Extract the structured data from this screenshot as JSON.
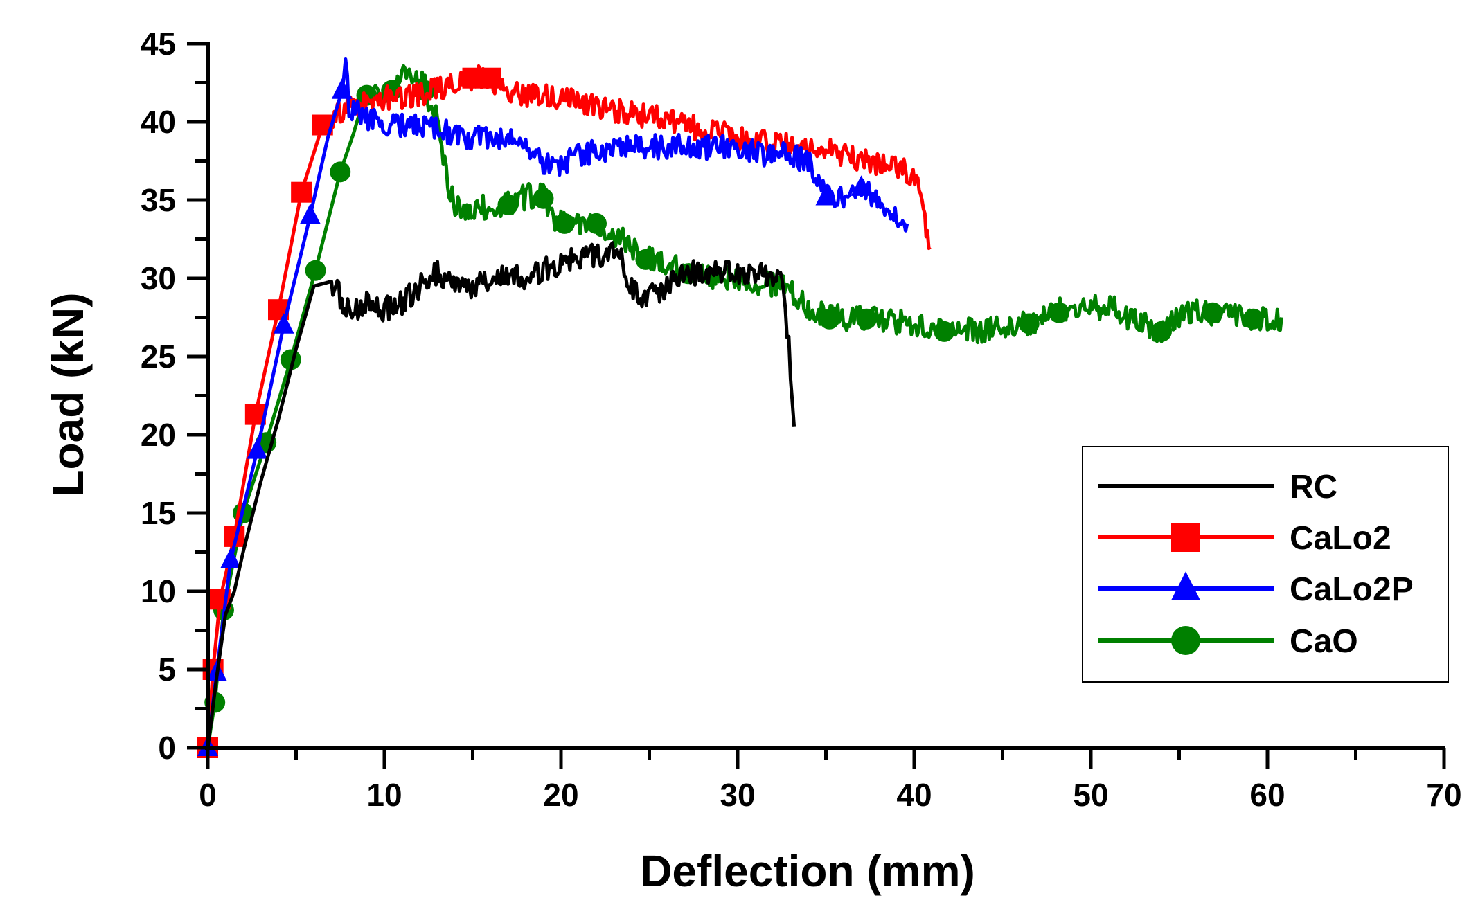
{
  "chart_data": {
    "type": "line",
    "title": "",
    "xlabel": "Deflection (mm)",
    "ylabel": "Load (kN)",
    "xlim": [
      0,
      70
    ],
    "ylim": [
      0,
      45
    ],
    "xticks": [
      0,
      10,
      20,
      30,
      40,
      50,
      60,
      70
    ],
    "yticks": [
      0,
      5,
      10,
      15,
      20,
      25,
      30,
      35,
      40,
      45
    ],
    "grid": false,
    "legend_position": "right",
    "series": [
      {
        "name": "RC",
        "color": "#000000",
        "marker": "none",
        "points": [
          [
            0,
            0
          ],
          [
            0.5,
            4.5
          ],
          [
            1,
            8.5
          ],
          [
            1.5,
            10
          ],
          [
            2,
            12.5
          ],
          [
            3,
            17
          ],
          [
            4,
            21
          ],
          [
            5,
            25.5
          ],
          [
            6,
            29.5
          ],
          [
            7,
            29.8
          ],
          [
            8,
            27.8
          ],
          [
            9,
            28.5
          ],
          [
            10,
            28
          ],
          [
            11,
            28.5
          ],
          [
            12,
            29.5
          ],
          [
            13,
            30.3
          ],
          [
            14,
            29.8
          ],
          [
            15,
            29.5
          ],
          [
            16,
            30
          ],
          [
            17,
            30.2
          ],
          [
            18,
            30
          ],
          [
            19,
            30.5
          ],
          [
            20,
            31
          ],
          [
            21,
            31.2
          ],
          [
            22,
            31.5
          ],
          [
            23,
            31.6
          ],
          [
            23.5,
            31.2
          ],
          [
            24,
            29.2
          ],
          [
            25,
            28.8
          ],
          [
            26,
            29.5
          ],
          [
            27,
            30.2
          ],
          [
            28,
            30.5
          ],
          [
            29,
            30.3
          ],
          [
            30,
            30.5
          ],
          [
            31,
            30.4
          ],
          [
            32,
            30
          ],
          [
            32.6,
            29.5
          ],
          [
            32.8,
            27
          ],
          [
            33,
            24
          ],
          [
            33.2,
            20.5
          ]
        ],
        "marker_points": []
      },
      {
        "name": "CaLo2",
        "color": "#ff0000",
        "marker": "square",
        "points": [
          [
            0,
            0
          ],
          [
            0.3,
            5
          ],
          [
            0.7,
            9.5
          ],
          [
            1.5,
            13.5
          ],
          [
            2.7,
            21.3
          ],
          [
            4,
            28
          ],
          [
            5.3,
            35.5
          ],
          [
            6.5,
            39.8
          ],
          [
            8,
            41
          ],
          [
            10,
            41.5
          ],
          [
            12,
            41.8
          ],
          [
            14,
            42.3
          ],
          [
            15,
            42.8
          ],
          [
            16,
            42.8
          ],
          [
            17,
            42
          ],
          [
            18,
            41.8
          ],
          [
            20,
            41.5
          ],
          [
            22,
            41
          ],
          [
            24,
            40.5
          ],
          [
            26,
            40.2
          ],
          [
            28,
            39.5
          ],
          [
            30,
            39
          ],
          [
            32,
            38.6
          ],
          [
            34,
            38.3
          ],
          [
            36,
            38
          ],
          [
            38,
            37.2
          ],
          [
            39.5,
            37
          ],
          [
            40.2,
            36
          ],
          [
            40.6,
            33.5
          ],
          [
            40.9,
            32
          ]
        ],
        "marker_points": [
          [
            0,
            0
          ],
          [
            0.3,
            5
          ],
          [
            0.7,
            9.5
          ],
          [
            1.5,
            13.5
          ],
          [
            2.7,
            21.3
          ],
          [
            4,
            28
          ],
          [
            5.3,
            35.5
          ],
          [
            6.5,
            39.8
          ],
          [
            15,
            42.8
          ],
          [
            16,
            42.8
          ]
        ]
      },
      {
        "name": "CaLo2P",
        "color": "#0000ff",
        "marker": "triangle",
        "points": [
          [
            0,
            0
          ],
          [
            0.5,
            4.8
          ],
          [
            1.3,
            12
          ],
          [
            2.8,
            19
          ],
          [
            4.3,
            27
          ],
          [
            5.8,
            34
          ],
          [
            6.8,
            39
          ],
          [
            7.6,
            42
          ],
          [
            7.8,
            43.5
          ],
          [
            8,
            41
          ],
          [
            9,
            40.2
          ],
          [
            10,
            39.8
          ],
          [
            11,
            39.8
          ],
          [
            12,
            39.6
          ],
          [
            13,
            39.5
          ],
          [
            14,
            39.2
          ],
          [
            15,
            39
          ],
          [
            16,
            38.8
          ],
          [
            17,
            39.2
          ],
          [
            18,
            38.5
          ],
          [
            19,
            37.2
          ],
          [
            20,
            37.3
          ],
          [
            21,
            38
          ],
          [
            22,
            38
          ],
          [
            23,
            38.2
          ],
          [
            24,
            38.3
          ],
          [
            25,
            38.5
          ],
          [
            26,
            38.4
          ],
          [
            27,
            38.5
          ],
          [
            28,
            38.3
          ],
          [
            29,
            38.4
          ],
          [
            30,
            38.2
          ],
          [
            31,
            38
          ],
          [
            32,
            38
          ],
          [
            33,
            37.8
          ],
          [
            34,
            37.5
          ],
          [
            35,
            35.2
          ],
          [
            36,
            35.3
          ],
          [
            37,
            35.8
          ],
          [
            38,
            35
          ],
          [
            39,
            34.2
          ],
          [
            39.6,
            33.5
          ]
        ],
        "marker_points": [
          [
            0,
            0
          ],
          [
            0.5,
            4.8
          ],
          [
            1.3,
            12
          ],
          [
            2.8,
            19
          ],
          [
            4.3,
            27
          ],
          [
            5.8,
            34
          ],
          [
            7.6,
            42
          ],
          [
            35,
            35.2
          ],
          [
            37,
            35.8
          ]
        ]
      },
      {
        "name": "CaO",
        "color": "#008000",
        "marker": "circle",
        "points": [
          [
            0,
            0
          ],
          [
            0.4,
            2.9
          ],
          [
            0.9,
            8.8
          ],
          [
            2,
            15
          ],
          [
            3.3,
            19.5
          ],
          [
            4.7,
            24.8
          ],
          [
            6.1,
            30.5
          ],
          [
            7.5,
            36.8
          ],
          [
            9,
            41.7
          ],
          [
            10.4,
            42
          ],
          [
            11,
            42.8
          ],
          [
            12.3,
            42.5
          ],
          [
            12.5,
            41.5
          ],
          [
            13,
            40
          ],
          [
            13.5,
            36.5
          ],
          [
            14,
            34.5
          ],
          [
            15,
            34.5
          ],
          [
            16,
            34.5
          ],
          [
            17,
            34.8
          ],
          [
            18,
            35.2
          ],
          [
            19,
            35.5
          ],
          [
            19.4,
            34
          ],
          [
            20,
            33.5
          ],
          [
            21,
            33.5
          ],
          [
            22,
            33.5
          ],
          [
            23,
            32.8
          ],
          [
            24,
            32
          ],
          [
            25,
            31.3
          ],
          [
            26,
            31
          ],
          [
            27,
            30.5
          ],
          [
            28,
            30.2
          ],
          [
            29,
            30
          ],
          [
            30,
            30
          ],
          [
            31,
            29.8
          ],
          [
            32,
            29.5
          ],
          [
            33,
            29.3
          ],
          [
            34,
            28
          ],
          [
            35,
            27.7
          ],
          [
            36,
            27.4
          ],
          [
            37,
            27.5
          ],
          [
            38,
            27.3
          ],
          [
            39,
            27.2
          ],
          [
            40,
            27
          ],
          [
            41,
            26.7
          ],
          [
            42,
            26.5
          ],
          [
            43,
            26.8
          ],
          [
            44,
            26.6
          ],
          [
            45,
            26.8
          ],
          [
            46,
            27
          ],
          [
            47,
            27.3
          ],
          [
            48,
            28
          ],
          [
            49,
            27.9
          ],
          [
            50,
            28.1
          ],
          [
            51,
            28.2
          ],
          [
            52,
            27.6
          ],
          [
            54,
            26.6
          ],
          [
            55,
            27.5
          ],
          [
            56,
            27.8
          ],
          [
            57,
            27.7
          ],
          [
            58,
            27.6
          ],
          [
            59,
            27.5
          ],
          [
            60,
            27.4
          ],
          [
            60.8,
            27.5
          ]
        ],
        "marker_points": [
          [
            0,
            0
          ],
          [
            0.4,
            2.9
          ],
          [
            0.9,
            8.8
          ],
          [
            2,
            15
          ],
          [
            3.3,
            19.5
          ],
          [
            4.7,
            24.8
          ],
          [
            6.1,
            30.5
          ],
          [
            7.5,
            36.8
          ],
          [
            9,
            41.7
          ],
          [
            10.4,
            42
          ],
          [
            12.3,
            42
          ],
          [
            17,
            34.7
          ],
          [
            19,
            35.1
          ],
          [
            20.2,
            33.5
          ],
          [
            22,
            33.5
          ],
          [
            24.8,
            31.2
          ],
          [
            27.2,
            30.3
          ],
          [
            35.2,
            27.4
          ],
          [
            37.3,
            27.4
          ],
          [
            41.7,
            26.6
          ],
          [
            46.5,
            27.1
          ],
          [
            48.2,
            27.8
          ],
          [
            54,
            26.6
          ],
          [
            56.9,
            27.8
          ],
          [
            59.2,
            27.4
          ]
        ]
      }
    ]
  }
}
